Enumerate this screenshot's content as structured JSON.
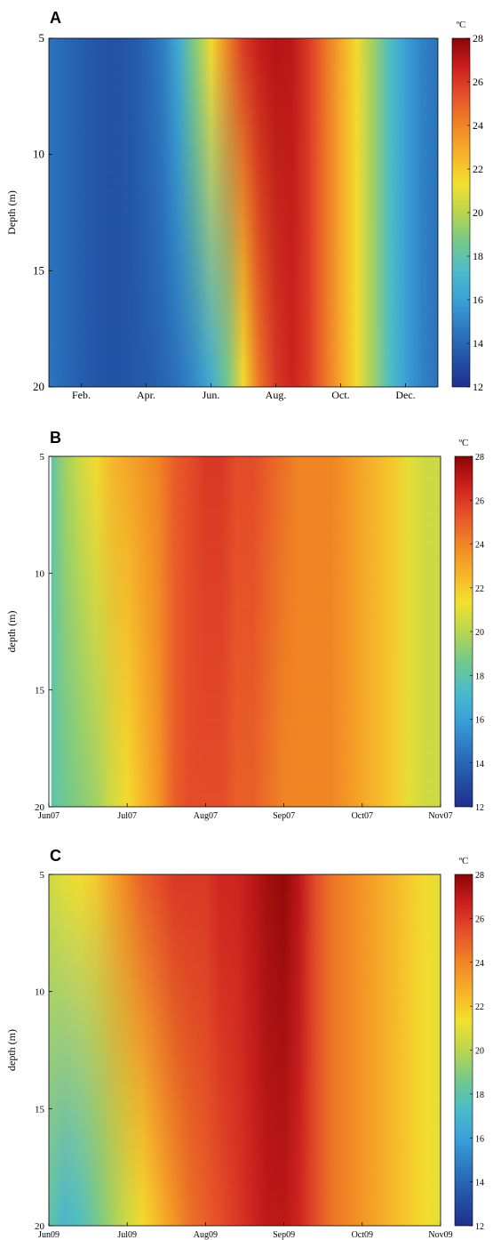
{
  "colormap": [
    "#1f2f8f",
    "#2453a6",
    "#2d79c1",
    "#3aa1d8",
    "#4bbcc9",
    "#74c98a",
    "#b9d64f",
    "#f2e12f",
    "#f7b22a",
    "#f08524",
    "#e6522b",
    "#cc1f1e",
    "#8a0606"
  ],
  "chart_data": [
    {
      "panel": "A",
      "type": "heatmap",
      "ylabel": "Depth (m)",
      "xlabel": "",
      "yticks": [
        5,
        10,
        15,
        20
      ],
      "ylim": [
        5,
        20
      ],
      "y_reversed": true,
      "xlim": [
        0,
        12
      ],
      "x_tick_labels": [
        "Feb.",
        "Apr.",
        "Jun.",
        "Aug.",
        "Oct.",
        "Dec."
      ],
      "x_tick_positions": [
        1,
        3,
        5,
        7,
        9,
        11
      ],
      "colorbar": {
        "label": "ºC",
        "min": 12,
        "max": 28,
        "ticks": [
          12,
          14,
          16,
          18,
          20,
          22,
          24,
          26,
          28
        ]
      },
      "x": [
        0,
        0.5,
        1,
        1.5,
        2,
        2.5,
        3,
        3.5,
        4,
        4.5,
        5,
        5.5,
        6,
        6.5,
        7,
        7.5,
        8,
        8.5,
        9,
        9.5,
        10,
        10.5,
        11,
        11.5,
        12
      ],
      "temp_top": [
        14.5,
        14.1,
        13.7,
        13.4,
        13.3,
        13.5,
        14.0,
        14.8,
        16.5,
        19.0,
        21.5,
        24.0,
        26.0,
        26.8,
        27.2,
        27.0,
        26.0,
        24.5,
        23.0,
        21.5,
        19.5,
        17.5,
        16.0,
        15.0,
        14.5
      ],
      "temp_bottom": [
        14.5,
        14.1,
        13.7,
        13.4,
        13.3,
        13.4,
        13.6,
        13.9,
        14.4,
        15.2,
        16.5,
        18.5,
        21.5,
        24.5,
        26.0,
        26.6,
        26.0,
        24.5,
        23.0,
        21.5,
        19.5,
        17.5,
        16.0,
        15.0,
        14.5
      ]
    },
    {
      "panel": "B",
      "type": "heatmap",
      "ylabel": "depth (m)",
      "xlabel": "",
      "yticks": [
        5,
        10,
        15,
        20
      ],
      "ylim": [
        5,
        20
      ],
      "y_reversed": true,
      "xlim": [
        0,
        5
      ],
      "x_tick_labels": [
        "Jun07",
        "Jul07",
        "Aug07",
        "Sep07",
        "Oct07",
        "Nov07"
      ],
      "x_tick_positions": [
        0,
        1,
        2,
        3,
        4,
        5
      ],
      "colorbar": {
        "label": "ºC",
        "min": 12,
        "max": 28,
        "ticks": [
          12,
          14,
          16,
          18,
          20,
          22,
          24,
          26,
          28
        ]
      },
      "x": [
        0.03,
        0.2,
        0.4,
        0.6,
        0.8,
        1.0,
        1.2,
        1.4,
        1.6,
        1.8,
        2.0,
        2.2,
        2.4,
        2.6,
        2.8,
        3.0,
        3.2,
        3.4,
        3.6,
        3.8,
        4.0,
        4.2,
        4.4,
        4.6,
        4.8,
        5.0
      ],
      "temp_top": [
        18.0,
        19.5,
        20.5,
        21.5,
        22.5,
        23.0,
        23.5,
        24.0,
        25.0,
        25.5,
        26.0,
        26.0,
        25.5,
        25.5,
        25.0,
        24.5,
        24.0,
        24.0,
        24.0,
        23.5,
        23.0,
        22.5,
        22.0,
        21.0,
        20.5,
        20.5
      ],
      "temp_bottom": [
        18.0,
        18.5,
        19.0,
        19.5,
        20.5,
        21.5,
        22.5,
        23.5,
        25.0,
        25.5,
        25.5,
        25.5,
        25.0,
        25.0,
        24.5,
        24.0,
        24.0,
        24.0,
        24.0,
        23.5,
        23.0,
        22.5,
        22.0,
        21.0,
        20.5,
        20.5
      ]
    },
    {
      "panel": "C",
      "type": "heatmap",
      "ylabel": "depth (m)",
      "xlabel": "",
      "yticks": [
        5,
        10,
        15,
        20
      ],
      "ylim": [
        5,
        20
      ],
      "y_reversed": true,
      "xlim": [
        0,
        5
      ],
      "x_tick_labels": [
        "Jun09",
        "Jul09",
        "Aug09",
        "Sep09",
        "Oct09",
        "Nov09"
      ],
      "x_tick_positions": [
        0,
        1,
        2,
        3,
        4,
        5
      ],
      "colorbar": {
        "label": "ºC",
        "min": 12,
        "max": 28,
        "ticks": [
          12,
          14,
          16,
          18,
          20,
          22,
          24,
          26,
          28
        ]
      },
      "x": [
        0,
        0.2,
        0.4,
        0.6,
        0.8,
        1.0,
        1.2,
        1.4,
        1.6,
        1.8,
        2.0,
        2.2,
        2.4,
        2.6,
        2.8,
        3.0,
        3.2,
        3.4,
        3.6,
        3.8,
        4.0,
        4.2,
        4.4,
        4.6,
        4.8,
        5.0
      ],
      "temp_top": [
        20.5,
        21.0,
        21.5,
        22.0,
        23.0,
        24.0,
        25.0,
        25.5,
        26.0,
        26.0,
        26.0,
        26.5,
        26.5,
        27.0,
        27.5,
        27.8,
        27.0,
        25.5,
        24.5,
        24.0,
        23.5,
        23.0,
        22.5,
        22.0,
        21.5,
        21.0
      ],
      "temp_bottom": [
        18.0,
        17.0,
        17.5,
        18.5,
        19.5,
        20.5,
        21.5,
        22.5,
        23.5,
        24.5,
        25.0,
        25.5,
        26.0,
        26.5,
        27.0,
        27.0,
        26.5,
        25.5,
        24.5,
        24.0,
        23.5,
        23.0,
        22.5,
        22.0,
        21.5,
        21.0
      ]
    }
  ]
}
